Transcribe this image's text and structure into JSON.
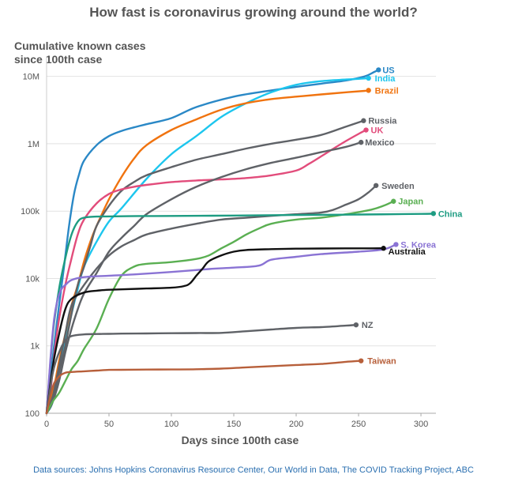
{
  "title": "How fast is coronavirus growing around the world?",
  "source": "Data sources: Johns Hopkins Coronavirus Resource Center, Our World in Data, The COVID Tracking Project, ABC",
  "chart_data": {
    "type": "line",
    "title": "How fast is coronavirus growing around the world?",
    "ylabel_lines": [
      "Cumulative known cases",
      "since 100th case"
    ],
    "xlabel": "Days since 100th case",
    "xlim": [
      0,
      312
    ],
    "ylim": [
      100,
      20000000
    ],
    "yscale": "log",
    "xticks": [
      0,
      50,
      100,
      150,
      200,
      250,
      300
    ],
    "yticks": [
      {
        "value": 100,
        "label": "100"
      },
      {
        "value": 1000,
        "label": "1k"
      },
      {
        "value": 10000,
        "label": "10k"
      },
      {
        "value": 100000,
        "label": "100k"
      },
      {
        "value": 1000000,
        "label": "1M"
      },
      {
        "value": 10000000,
        "label": "10M"
      }
    ],
    "grid": "horizontal",
    "series": [
      {
        "name": "US",
        "color": "#2a88c6",
        "x": [
          0,
          3,
          6,
          10,
          14,
          18,
          22,
          26,
          30,
          40,
          50,
          60,
          70,
          80,
          100,
          120,
          150,
          180,
          200,
          220,
          240,
          255,
          262,
          266
        ],
        "y": [
          100,
          300,
          1000,
          4000,
          15000,
          60000,
          180000,
          350000,
          560000,
          950000,
          1300000,
          1550000,
          1750000,
          1950000,
          2400000,
          3500000,
          5000000,
          6200000,
          7000000,
          7800000,
          8700000,
          10000000,
          11500000,
          12500000
        ]
      },
      {
        "name": "India",
        "color": "#1dc6ee",
        "x": [
          0,
          5,
          10,
          15,
          20,
          25,
          30,
          40,
          50,
          60,
          80,
          100,
          120,
          140,
          160,
          180,
          200,
          220,
          240,
          250,
          258
        ],
        "y": [
          100,
          150,
          500,
          1200,
          3000,
          7000,
          15000,
          35000,
          70000,
          110000,
          300000,
          700000,
          1300000,
          2500000,
          4000000,
          5800000,
          7500000,
          8500000,
          9000000,
          9200000,
          9400000
        ]
      },
      {
        "name": "Brazil",
        "color": "#f0730f",
        "x": [
          0,
          5,
          10,
          15,
          20,
          25,
          30,
          35,
          40,
          50,
          60,
          70,
          80,
          100,
          120,
          140,
          160,
          180,
          200,
          220,
          240,
          255,
          258
        ],
        "y": [
          100,
          200,
          600,
          1500,
          4000,
          8000,
          18000,
          35000,
          60000,
          150000,
          320000,
          600000,
          950000,
          1600000,
          2300000,
          3200000,
          4000000,
          4600000,
          5000000,
          5400000,
          5800000,
          6100000,
          6200000
        ]
      },
      {
        "name": "Russia",
        "color": "#5f6267",
        "x": [
          0,
          5,
          10,
          15,
          20,
          25,
          30,
          35,
          40,
          50,
          60,
          70,
          80,
          100,
          120,
          140,
          160,
          180,
          200,
          220,
          240,
          254
        ],
        "y": [
          100,
          150,
          400,
          1000,
          3000,
          8000,
          15000,
          30000,
          60000,
          120000,
          200000,
          270000,
          340000,
          450000,
          580000,
          700000,
          850000,
          1000000,
          1150000,
          1350000,
          1800000,
          2200000
        ]
      },
      {
        "name": "UK",
        "color": "#e24c7b",
        "x": [
          0,
          3,
          6,
          10,
          15,
          20,
          25,
          30,
          40,
          50,
          60,
          70,
          80,
          100,
          120,
          140,
          160,
          180,
          200,
          210,
          220,
          230,
          240,
          250,
          256
        ],
        "y": [
          100,
          200,
          700,
          2500,
          8000,
          20000,
          45000,
          75000,
          130000,
          180000,
          210000,
          230000,
          245000,
          270000,
          285000,
          295000,
          310000,
          340000,
          400000,
          500000,
          650000,
          850000,
          1100000,
          1400000,
          1600000
        ]
      },
      {
        "name": "Mexico",
        "color": "#5f6267",
        "x": [
          0,
          5,
          10,
          15,
          20,
          25,
          30,
          40,
          50,
          60,
          70,
          80,
          100,
          120,
          140,
          160,
          180,
          200,
          220,
          240,
          252
        ],
        "y": [
          100,
          150,
          300,
          800,
          1800,
          3500,
          6000,
          12000,
          25000,
          40000,
          60000,
          90000,
          150000,
          230000,
          320000,
          420000,
          520000,
          620000,
          750000,
          900000,
          1050000
        ]
      },
      {
        "name": "Sweden",
        "color": "#5f6267",
        "x": [
          0,
          5,
          10,
          15,
          20,
          30,
          40,
          50,
          60,
          70,
          80,
          100,
          120,
          140,
          160,
          180,
          200,
          220,
          230,
          240,
          250,
          258,
          264
        ],
        "y": [
          100,
          180,
          500,
          1500,
          4000,
          8000,
          14000,
          22000,
          30000,
          37000,
          45000,
          55000,
          65000,
          75000,
          80000,
          85000,
          90000,
          95000,
          105000,
          125000,
          150000,
          190000,
          240000
        ]
      },
      {
        "name": "Japan",
        "color": "#5aaf52",
        "x": [
          0,
          5,
          10,
          15,
          20,
          25,
          30,
          40,
          50,
          60,
          70,
          80,
          100,
          120,
          130,
          140,
          150,
          160,
          170,
          180,
          200,
          220,
          240,
          260,
          270,
          278
        ],
        "y": [
          100,
          150,
          200,
          300,
          450,
          600,
          900,
          1800,
          5000,
          11000,
          15000,
          16500,
          17500,
          19500,
          22000,
          28000,
          35000,
          45000,
          55000,
          65000,
          75000,
          80000,
          90000,
          105000,
          120000,
          140000
        ]
      },
      {
        "name": "China",
        "color": "#1d9c82",
        "x": [
          0,
          5,
          10,
          15,
          20,
          25,
          30,
          40,
          60,
          80,
          100,
          150,
          200,
          250,
          300,
          310
        ],
        "y": [
          100,
          1500,
          7000,
          20000,
          45000,
          70000,
          80000,
          83000,
          84000,
          84500,
          84800,
          86000,
          87500,
          89000,
          91000,
          92000
        ]
      },
      {
        "name": "S. Korea",
        "color": "#8a73d4",
        "x": [
          0,
          3,
          6,
          9,
          12,
          15,
          20,
          30,
          50,
          70,
          100,
          130,
          150,
          170,
          180,
          200,
          220,
          250,
          270,
          280
        ],
        "y": [
          100,
          600,
          2500,
          5000,
          7000,
          8000,
          9500,
          10500,
          11000,
          11500,
          12500,
          13800,
          14500,
          15500,
          19000,
          21000,
          23000,
          25000,
          27000,
          32000
        ]
      },
      {
        "name": "Australia",
        "color": "#111111",
        "x": [
          0,
          5,
          10,
          15,
          20,
          30,
          40,
          50,
          60,
          80,
          100,
          110,
          115,
          120,
          125,
          130,
          140,
          150,
          160,
          180,
          200,
          220,
          240,
          260,
          270
        ],
        "y": [
          100,
          500,
          1500,
          3500,
          5000,
          6200,
          6600,
          6800,
          6900,
          7100,
          7300,
          7700,
          8500,
          11000,
          14000,
          18000,
          22000,
          25000,
          26500,
          27300,
          27700,
          27900,
          28000,
          28000,
          28100
        ]
      },
      {
        "name": "NZ",
        "color": "#5f6267",
        "x": [
          0,
          5,
          10,
          15,
          20,
          30,
          40,
          50,
          60,
          80,
          100,
          120,
          140,
          160,
          180,
          200,
          220,
          240,
          248
        ],
        "y": [
          100,
          400,
          800,
          1200,
          1400,
          1480,
          1500,
          1510,
          1520,
          1530,
          1540,
          1550,
          1560,
          1650,
          1750,
          1850,
          1900,
          2000,
          2050
        ]
      },
      {
        "name": "Taiwan",
        "color": "#b75f3a",
        "x": [
          0,
          5,
          10,
          15,
          20,
          30,
          40,
          50,
          60,
          80,
          100,
          120,
          140,
          160,
          180,
          200,
          220,
          240,
          252
        ],
        "y": [
          100,
          250,
          350,
          400,
          410,
          420,
          430,
          440,
          442,
          445,
          447,
          450,
          460,
          480,
          500,
          520,
          540,
          580,
          600
        ]
      }
    ]
  }
}
